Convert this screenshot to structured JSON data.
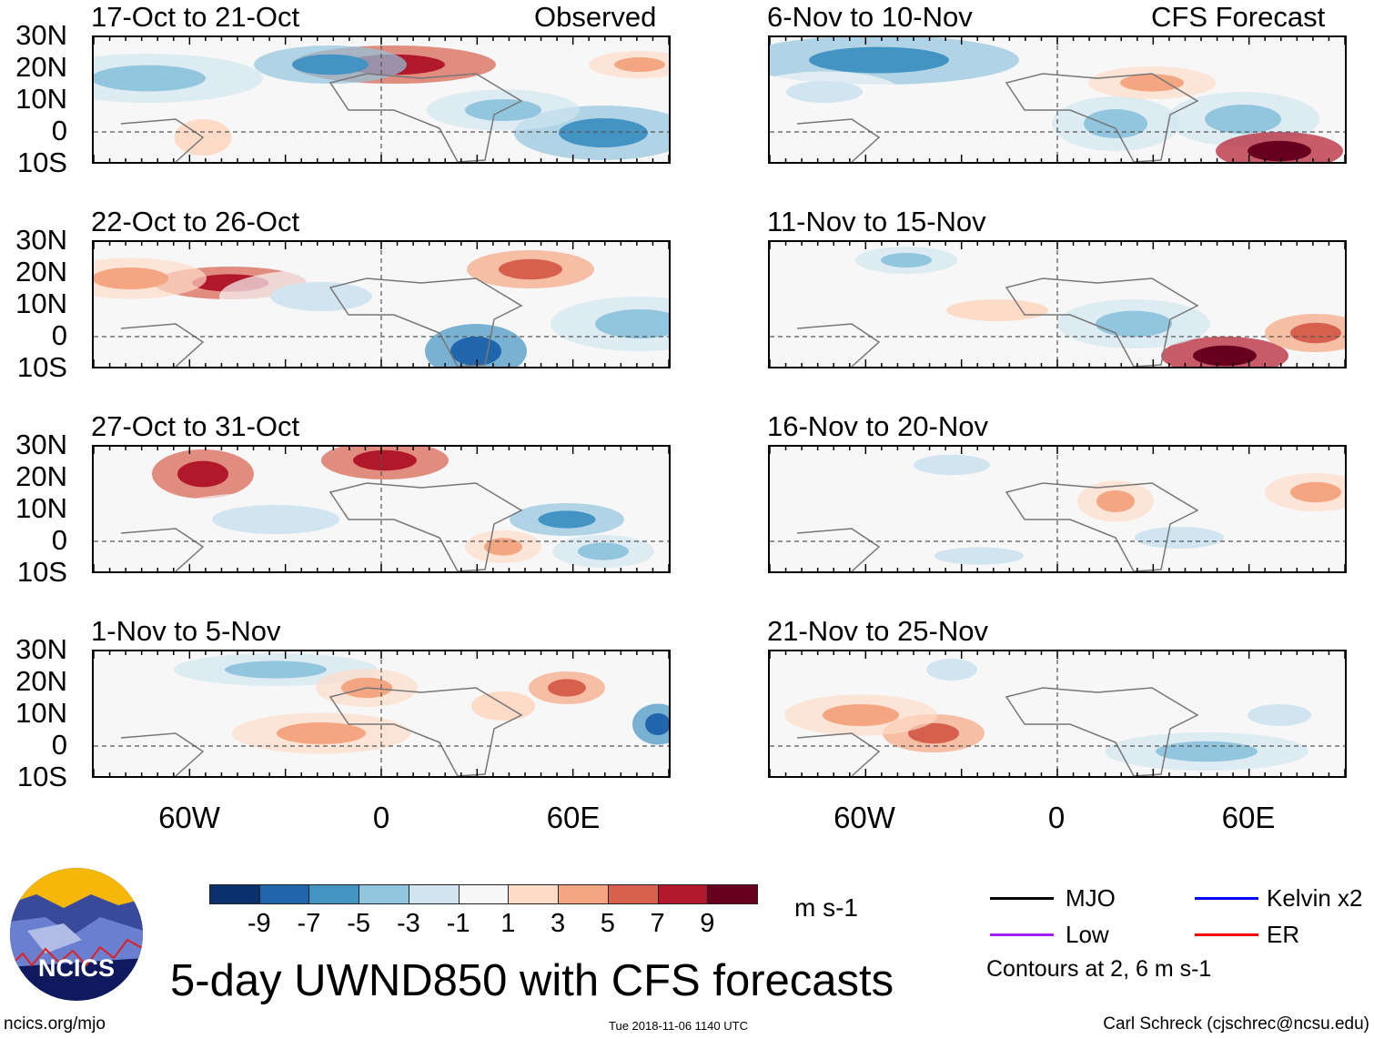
{
  "headers": {
    "observed": "Observed",
    "forecast": "CFS Forecast"
  },
  "panels_left": [
    {
      "title": "17-Oct to 21-Oct"
    },
    {
      "title": "22-Oct to 26-Oct"
    },
    {
      "title": "27-Oct to 31-Oct"
    },
    {
      "title": "1-Nov to 5-Nov"
    }
  ],
  "panels_right": [
    {
      "title": "6-Nov to 10-Nov"
    },
    {
      "title": "11-Nov to 15-Nov"
    },
    {
      "title": "16-Nov to 20-Nov"
    },
    {
      "title": "21-Nov to 25-Nov"
    }
  ],
  "lat_labels": [
    "30N",
    "20N",
    "10N",
    "0",
    "10S"
  ],
  "lon_labels": [
    "60W",
    "0",
    "60E"
  ],
  "colorbar": {
    "colors": [
      "#08306b",
      "#2166ac",
      "#4393c3",
      "#92c5de",
      "#d1e5f0",
      "#f7f7f7",
      "#fddbc7",
      "#f4a582",
      "#d6604d",
      "#b2182b",
      "#67001f"
    ],
    "labels": [
      "-9",
      "-7",
      "-5",
      "-3",
      "-1",
      "1",
      "3",
      "5",
      "7",
      "9"
    ],
    "units": "m s-1"
  },
  "legend": {
    "items": [
      {
        "label": "MJO",
        "color": "#000000"
      },
      {
        "label": "Kelvin x2",
        "color": "#0000ff"
      },
      {
        "label": "Low",
        "color": "#a020f0"
      },
      {
        "label": "ER",
        "color": "#ff0000"
      }
    ],
    "note": "Contours at 2, 6 m s-1"
  },
  "logo": {
    "text": "NCICS"
  },
  "title": "5-day UWND850 with CFS forecasts",
  "footer": {
    "left": "ncics.org/mjo",
    "center": "Tue 2018-11-06 1140 UTC",
    "right": "Carl Schreck (cjschrec@ncsu.edu)"
  }
}
